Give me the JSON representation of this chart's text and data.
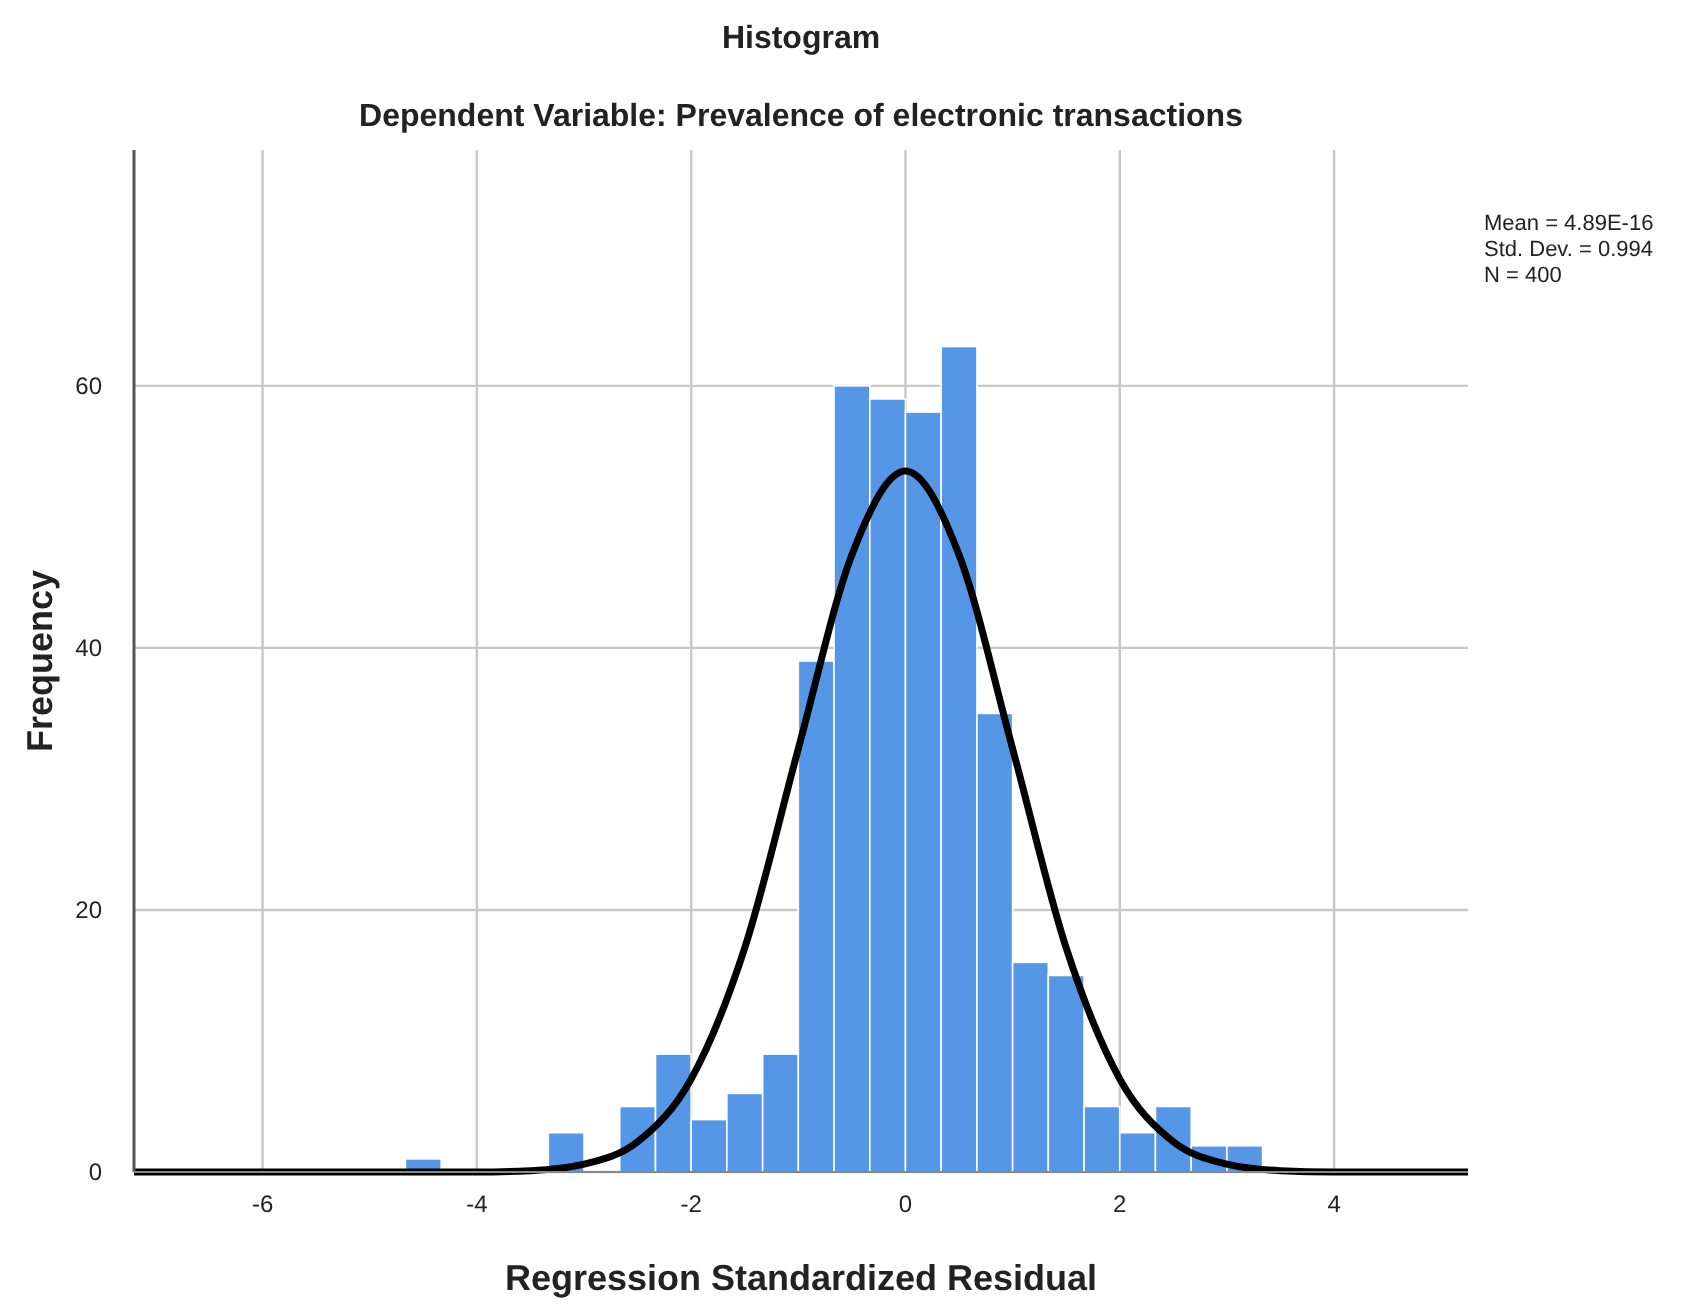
{
  "chart_data": {
    "type": "histogram",
    "title": "Histogram",
    "subtitle": "Dependent Variable: Prevalence of electronic transactions",
    "xlabel": "Regression Standardized Residual",
    "ylabel": "Frequency",
    "bins": [
      -4.667,
      -4.333,
      -4,
      -3.667,
      -3.333,
      -3,
      -2.667,
      -2.333,
      -2,
      -1.667,
      -1.333,
      -1,
      -0.667,
      -0.333,
      0,
      0.333,
      0.667,
      1,
      1.333,
      1.667,
      2,
      2.333,
      2.667,
      3,
      3.333
    ],
    "values": [
      1,
      0,
      0,
      0,
      3,
      0,
      5,
      9,
      4,
      6,
      9,
      39,
      60,
      59,
      58,
      63,
      35,
      16,
      15,
      5,
      3,
      5,
      2,
      2
    ],
    "color": "#5596e6",
    "series": [
      {
        "type": "line",
        "color": "#000000",
        "x": [
          -7.2,
          -4,
          -3.5,
          -3,
          -2.5,
          -2,
          -1.5,
          -1,
          -0.5,
          0,
          0.5,
          1,
          1.5,
          2,
          2.5,
          3,
          3.5,
          4,
          5.25
        ],
        "values": [
          0,
          0,
          0.1,
          0.6,
          2.3,
          7.1,
          17.1,
          32.3,
          47.1,
          53.5,
          47.1,
          32.3,
          17.1,
          7.1,
          2.3,
          0.6,
          0.1,
          0,
          0
        ]
      }
    ],
    "xlim": [
      -7.2,
      5.25
    ],
    "ylim": [
      0,
      78
    ],
    "xticks": [
      -6,
      -4,
      -2,
      0,
      2,
      4
    ],
    "yticks": [
      0,
      20,
      40,
      60
    ],
    "grid": true,
    "annotations": [
      "Mean = 4.89E-16",
      "Std. Dev. = 0.994",
      "N = 400"
    ]
  }
}
